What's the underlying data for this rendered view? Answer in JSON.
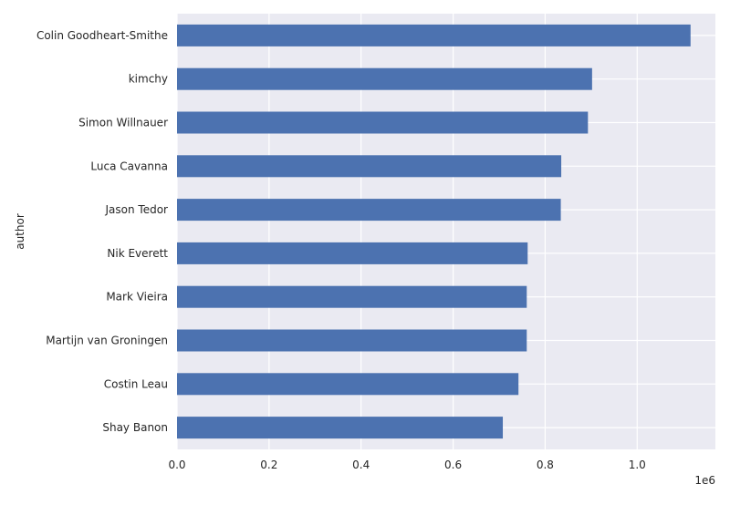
{
  "chart_data": {
    "type": "bar",
    "orientation": "horizontal",
    "title": "",
    "xlabel": "",
    "ylabel": "author",
    "x_scale_note": "1e6",
    "xlim": [
      0,
      1170000
    ],
    "xticks": [
      0,
      200000,
      400000,
      600000,
      800000,
      1000000
    ],
    "xtick_labels": [
      "0.0",
      "0.2",
      "0.4",
      "0.6",
      "0.8",
      "1.0"
    ],
    "categories": [
      "Colin Goodheart-Smithe",
      "kimchy",
      "Simon Willnauer",
      "Luca Cavanna",
      "Jason Tedor",
      "Nik Everett",
      "Mark Vieira",
      "Martijn van Groningen",
      "Costin Leau",
      "Shay Banon"
    ],
    "values": [
      1116000,
      902000,
      893000,
      835000,
      834000,
      762000,
      760000,
      760000,
      742000,
      708000
    ],
    "bar_color": "#4c72b0",
    "background_color": "#eaeaf2",
    "grid": true,
    "legend": "none"
  }
}
